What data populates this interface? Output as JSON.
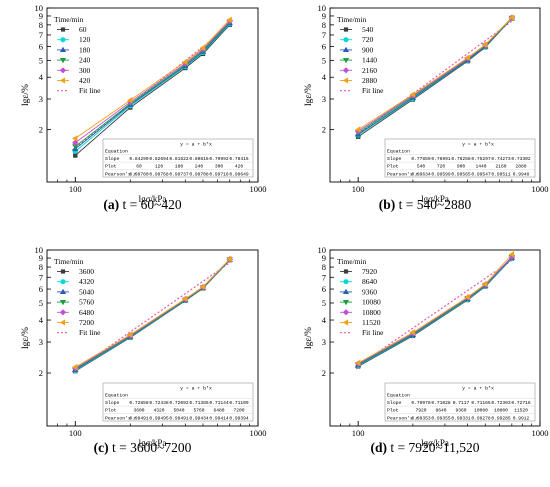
{
  "colors": {
    "series": [
      "#3c3c3c",
      "#00d8d8",
      "#2a5bb6",
      "#1d9e3c",
      "#c14fd6",
      "#f2a11a"
    ],
    "fit": "#e85aa8",
    "axis": "#000000",
    "table_border": "#9a9a9a"
  },
  "markers": [
    "square",
    "circle",
    "triangle-up",
    "triangle-down",
    "diamond",
    "triangle-left"
  ],
  "chart_data": [
    {
      "type": "scatter",
      "caption_label": "(a)",
      "caption_text": " t = 60~420",
      "xlabel": "lgσ/kPa",
      "ylabel": "lgε/%",
      "xscale": "log",
      "yscale": "log",
      "xlim": [
        70,
        1000
      ],
      "ylim": [
        1,
        10
      ],
      "x_ticks": [
        "100",
        "1000"
      ],
      "y_ticks": [
        "1",
        "2",
        "3",
        "4",
        "5",
        "6",
        "7",
        "8",
        "9",
        "10"
      ],
      "legend_title": "Time/min",
      "legend_placement": "top-left",
      "x": [
        100,
        200,
        400,
        500,
        700
      ],
      "series": [
        {
          "name": "60",
          "values": [
            1.42,
            2.68,
            4.52,
            5.45,
            8.0
          ]
        },
        {
          "name": "120",
          "values": [
            1.5,
            2.74,
            4.6,
            5.55,
            8.1
          ]
        },
        {
          "name": "180",
          "values": [
            1.55,
            2.78,
            4.65,
            5.62,
            8.2
          ]
        },
        {
          "name": "240",
          "values": [
            1.6,
            2.82,
            4.72,
            5.7,
            8.3
          ]
        },
        {
          "name": "300",
          "values": [
            1.68,
            2.88,
            4.8,
            5.8,
            8.4
          ]
        },
        {
          "name": "420",
          "values": [
            1.78,
            2.95,
            4.9,
            5.9,
            8.55
          ]
        }
      ],
      "fit_label": "Fit line",
      "table": {
        "title": "y = a + b*x",
        "rows": [
          {
            "label": "Equation",
            "values": [
              "",
              "",
              "",
              "",
              "",
              ""
            ]
          },
          {
            "label": "Slope",
            "values": [
              "0.84299",
              "0.82694",
              "0.81622",
              "0.80816",
              "0.79992",
              "0.78416"
            ]
          },
          {
            "label": "Plot",
            "values": [
              "60",
              "120",
              "180",
              "240",
              "300",
              "420"
            ]
          },
          {
            "label": "Pearson's r",
            "values": [
              "0.99780",
              "0.99768",
              "0.99737",
              "0.99708",
              "0.99716",
              "0.99649"
            ]
          }
        ]
      }
    },
    {
      "type": "scatter",
      "caption_label": "(b)",
      "caption_text": " t = 540~2880",
      "xlabel": "lgσ/kPa",
      "ylabel": "lgε/%",
      "xscale": "log",
      "yscale": "log",
      "xlim": [
        70,
        1000
      ],
      "ylim": [
        1,
        10
      ],
      "x_ticks": [
        "100",
        "1000"
      ],
      "y_ticks": [
        "1",
        "2",
        "3",
        "4",
        "5",
        "6",
        "7",
        "8",
        "9",
        "10"
      ],
      "legend_title": "Time/min",
      "legend_placement": "top-left",
      "x": [
        100,
        200,
        400,
        500,
        700
      ],
      "series": [
        {
          "name": "540",
          "values": [
            1.82,
            2.98,
            4.95,
            5.95,
            8.7
          ]
        },
        {
          "name": "720",
          "values": [
            1.86,
            3.02,
            5.0,
            6.0,
            8.72
          ]
        },
        {
          "name": "900",
          "values": [
            1.88,
            3.05,
            5.02,
            6.02,
            8.74
          ]
        },
        {
          "name": "1440",
          "values": [
            1.92,
            3.1,
            5.08,
            6.08,
            8.76
          ]
        },
        {
          "name": "2160",
          "values": [
            1.96,
            3.14,
            5.12,
            6.12,
            8.78
          ]
        },
        {
          "name": "2880",
          "values": [
            2.0,
            3.18,
            5.18,
            6.15,
            8.8
          ]
        }
      ],
      "fit_label": "Fit line",
      "table": {
        "title": "y = a + b*x",
        "rows": [
          {
            "label": "Equation",
            "values": [
              "",
              "",
              "",
              "",
              "",
              ""
            ]
          },
          {
            "label": "Slope",
            "values": [
              "0.77859",
              "0.76991",
              "0.76258",
              "0.75297",
              "0.74273",
              "0.73302"
            ]
          },
          {
            "label": "Plot",
            "values": [
              "540",
              "720",
              "900",
              "1440",
              "2160",
              "2880"
            ]
          },
          {
            "label": "Pearson's r",
            "values": [
              "0.99634",
              "0.99599",
              "0.99565",
              "0.99547",
              "0.99511",
              "0.9948"
            ]
          }
        ]
      }
    },
    {
      "type": "scatter",
      "caption_label": "(c)",
      "caption_text": " t = 3600~7200",
      "xlabel": "lgσ/kPa",
      "ylabel": "lgε/%",
      "xscale": "log",
      "yscale": "log",
      "xlim": [
        70,
        1000
      ],
      "ylim": [
        1,
        10
      ],
      "x_ticks": [
        "100",
        "1000"
      ],
      "y_ticks": [
        "1",
        "2",
        "3",
        "4",
        "5",
        "6",
        "7",
        "8",
        "9",
        "10"
      ],
      "legend_title": "Time/min",
      "legend_placement": "top-left",
      "x": [
        100,
        200,
        400,
        500,
        700
      ],
      "series": [
        {
          "name": "3600",
          "values": [
            2.05,
            3.18,
            5.15,
            6.05,
            8.75
          ]
        },
        {
          "name": "4320",
          "values": [
            2.07,
            3.2,
            5.18,
            6.08,
            8.78
          ]
        },
        {
          "name": "5040",
          "values": [
            2.09,
            3.22,
            5.2,
            6.1,
            8.8
          ]
        },
        {
          "name": "5760",
          "values": [
            2.11,
            3.24,
            5.22,
            6.12,
            8.82
          ]
        },
        {
          "name": "6480",
          "values": [
            2.13,
            3.27,
            5.25,
            6.15,
            8.85
          ]
        },
        {
          "name": "7200",
          "values": [
            2.16,
            3.3,
            5.28,
            6.18,
            8.88
          ]
        }
      ],
      "fit_label": "Fit line",
      "table": {
        "title": "y = a + b*x",
        "rows": [
          {
            "label": "Equation",
            "values": [
              "",
              "",
              "",
              "",
              "",
              ""
            ]
          },
          {
            "label": "Slope",
            "values": [
              "0.72858",
              "0.72438",
              "0.72092",
              "0.71385",
              "0.71144",
              "0.71109"
            ]
          },
          {
            "label": "Plot",
            "values": [
              "3600",
              "4320",
              "5040",
              "5760",
              "6480",
              "7200"
            ]
          },
          {
            "label": "Pearson's r",
            "values": [
              "0.99491",
              "0.99495",
              "0.99491",
              "0.99434",
              "0.99414",
              "0.99394"
            ]
          }
        ]
      }
    },
    {
      "type": "scatter",
      "caption_label": "(d)",
      "caption_text": " t = 7920~11,520",
      "xlabel": "lgσ/kPa",
      "ylabel": "lgε/%",
      "xscale": "log",
      "yscale": "log",
      "xlim": [
        70,
        1000
      ],
      "ylim": [
        1,
        10
      ],
      "x_ticks": [
        "100",
        "1000"
      ],
      "y_ticks": [
        "1",
        "2",
        "3",
        "4",
        "5",
        "6",
        "7",
        "8",
        "9",
        "10"
      ],
      "legend_title": "Time/min",
      "legend_placement": "top-left",
      "x": [
        100,
        200,
        400,
        500,
        700
      ],
      "series": [
        {
          "name": "7920",
          "values": [
            2.18,
            3.25,
            5.2,
            6.2,
            8.95
          ]
        },
        {
          "name": "8640",
          "values": [
            2.2,
            3.28,
            5.24,
            6.24,
            9.0
          ]
        },
        {
          "name": "9360",
          "values": [
            2.22,
            3.3,
            5.28,
            6.28,
            9.05
          ]
        },
        {
          "name": "10080",
          "values": [
            2.24,
            3.33,
            5.32,
            6.32,
            9.1
          ]
        },
        {
          "name": "10800",
          "values": [
            2.26,
            3.36,
            5.36,
            6.36,
            9.15
          ]
        },
        {
          "name": "11520",
          "values": [
            2.28,
            3.4,
            5.4,
            6.4,
            9.45
          ]
        }
      ],
      "fit_label": "Fit line",
      "table": {
        "title": "y = a + b*x",
        "rows": [
          {
            "label": "Equation",
            "values": [
              "",
              "",
              "",
              "",
              "",
              ""
            ]
          },
          {
            "label": "Slope",
            "values": [
              "0.70978",
              "0.71028",
              "0.7117",
              "0.71165",
              "0.72303",
              "0.72716"
            ]
          },
          {
            "label": "Plot",
            "values": [
              "7920",
              "8640",
              "9360",
              "10080",
              "10800",
              "11520"
            ]
          },
          {
            "label": "Pearson's r",
            "values": [
              "0.99353",
              "0.99355",
              "0.99331",
              "0.99278",
              "0.99285",
              "0.9912"
            ]
          }
        ]
      }
    }
  ]
}
